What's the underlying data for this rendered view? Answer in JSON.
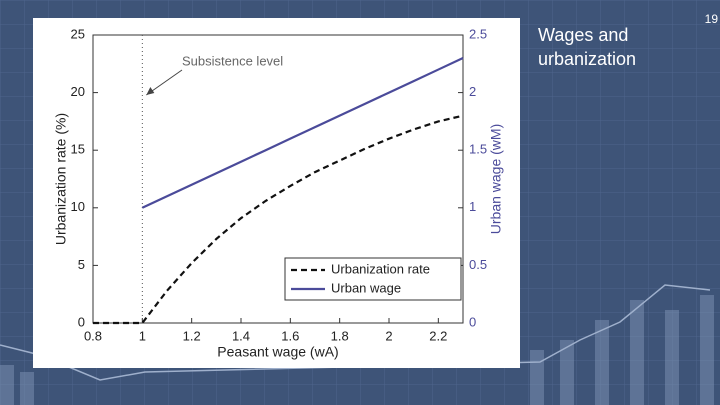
{
  "slide": {
    "title": "Wages and urbanization",
    "page_number": "19"
  },
  "chart_data": {
    "type": "line",
    "x": [
      0.8,
      0.9,
      1,
      1.1,
      1.2,
      1.3,
      1.4,
      1.5,
      1.6,
      1.7,
      1.8,
      1.9,
      2.0,
      2.1,
      2.2,
      2.3
    ],
    "series": [
      {
        "name": "Urbanization rate",
        "color": "#111111",
        "dash": true,
        "values": [
          0,
          0,
          0,
          2.8,
          5.2,
          7.3,
          9.1,
          10.6,
          11.9,
          13.1,
          14.1,
          15.1,
          16,
          16.8,
          17.5,
          18
        ]
      },
      {
        "name": "Urban wage",
        "color": "#4b4b9a",
        "axis": "y2",
        "values": [
          null,
          null,
          1,
          1.1,
          1.2,
          1.3,
          1.4,
          1.5,
          1.6,
          1.7,
          1.8,
          1.9,
          2.0,
          2.1,
          2.2,
          2.3
        ]
      }
    ],
    "xlabel": "Peasant wage (wA)",
    "ylabel": "Urbanization rate (%)",
    "y2label": "Urban wage (wM)",
    "xlim": [
      0.8,
      2.3
    ],
    "xticks": [
      0.8,
      1,
      1.2,
      1.4,
      1.6,
      1.8,
      2,
      2.2
    ],
    "ylim": [
      0,
      25
    ],
    "yticks": [
      0,
      5,
      10,
      15,
      20,
      25
    ],
    "y2lim": [
      0,
      2.5
    ],
    "y2ticks": [
      0,
      0.5,
      1,
      1.5,
      2,
      2.5
    ],
    "annotation": {
      "text": "Subsistence level",
      "x": 1
    },
    "legend": "lower right",
    "grid": false
  }
}
